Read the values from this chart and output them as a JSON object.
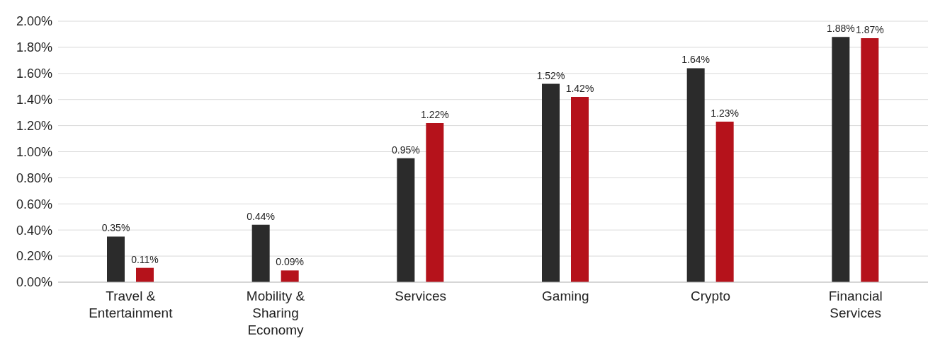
{
  "chart_data": {
    "type": "bar",
    "categories": [
      "Travel & Entertainment",
      "Mobility & Sharing Economy",
      "Services",
      "Gaming",
      "Crypto",
      "Financial Services"
    ],
    "series": [
      {
        "color": "#2b2b2b",
        "values": [
          0.35,
          0.44,
          0.95,
          1.52,
          1.64,
          1.88
        ],
        "value_labels": [
          "0.35%",
          "0.44%",
          "0.95%",
          "1.52%",
          "1.64%",
          "1.88%"
        ]
      },
      {
        "color": "#b5121b",
        "values": [
          0.11,
          0.09,
          1.22,
          1.42,
          1.23,
          1.87
        ],
        "value_labels": [
          "0.11%",
          "0.09%",
          "1.22%",
          "1.42%",
          "1.23%",
          "1.87%"
        ]
      }
    ],
    "ylim": [
      0,
      2
    ],
    "yticks": [
      {
        "value": 0,
        "label": "0.00%"
      },
      {
        "value": 0.2,
        "label": "0.20%"
      },
      {
        "value": 0.4,
        "label": "0.40%"
      },
      {
        "value": 0.6,
        "label": "0.60%"
      },
      {
        "value": 0.8,
        "label": "0.80%"
      },
      {
        "value": 1,
        "label": "1.00%"
      },
      {
        "value": 1.2,
        "label": "1.20%"
      },
      {
        "value": 1.4,
        "label": "1.40%"
      },
      {
        "value": 1.6,
        "label": "1.60%"
      },
      {
        "value": 1.8,
        "label": "1.80%"
      },
      {
        "value": 2,
        "label": "2.00%"
      }
    ],
    "grid": "y",
    "legend": false
  }
}
